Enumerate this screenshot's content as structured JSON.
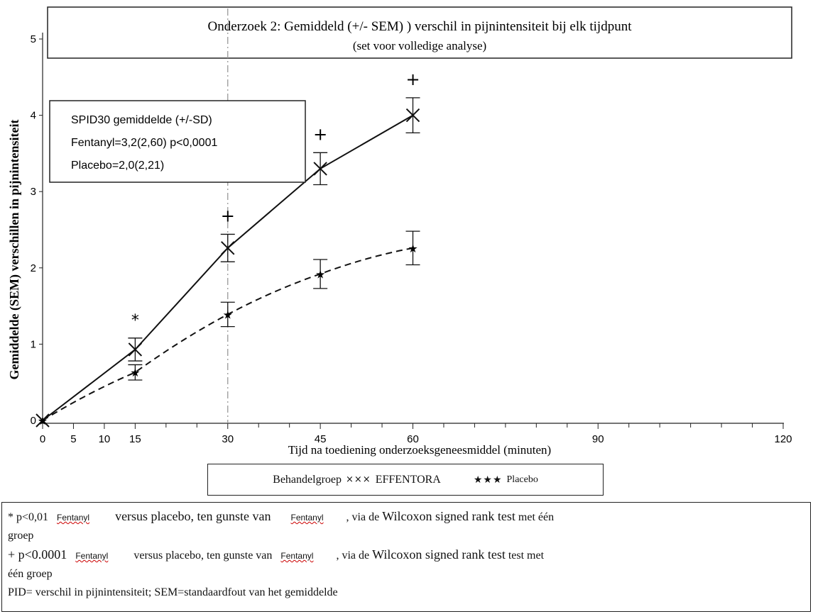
{
  "chart_data": {
    "type": "line",
    "title": "Onderzoek 2: Gemiddeld (+/- SEM) ) verschil in pijnintensiteit bij elk tijdpunt",
    "subtitle": "(set voor volledige analyse)",
    "xlabel": "Tijd na toediening onderzoeksgeneesmiddel (minuten)",
    "ylabel": "Gemiddelde (SEM) verschillen in pijnintensiteit",
    "xlim": [
      0,
      120
    ],
    "ylim": [
      0,
      5
    ],
    "x_ticks": [
      0,
      5,
      10,
      15,
      30,
      45,
      60,
      90,
      120
    ],
    "y_ticks": [
      0,
      1,
      2,
      3,
      4,
      5
    ],
    "reference_line_x": 30,
    "series": [
      {
        "name": "EFFENTORA",
        "marker": "x",
        "line_style": "solid",
        "color": "#111111",
        "points": [
          {
            "x": 0,
            "y": 0,
            "sem": 0
          },
          {
            "x": 15,
            "y": 0.93,
            "sem": 0.15
          },
          {
            "x": 30,
            "y": 2.26,
            "sem": 0.18
          },
          {
            "x": 45,
            "y": 3.3,
            "sem": 0.21
          },
          {
            "x": 60,
            "y": 4.0,
            "sem": 0.23
          }
        ]
      },
      {
        "name": "Placebo",
        "marker": "star",
        "line_style": "dashed",
        "color": "#111111",
        "points": [
          {
            "x": 0,
            "y": 0,
            "sem": 0
          },
          {
            "x": 15,
            "y": 0.63,
            "sem": 0.1
          },
          {
            "x": 30,
            "y": 1.39,
            "sem": 0.16
          },
          {
            "x": 45,
            "y": 1.92,
            "sem": 0.19
          },
          {
            "x": 60,
            "y": 2.26,
            "sem": 0.22
          }
        ]
      }
    ],
    "significance_marks": [
      {
        "x": 15,
        "symbol": "*"
      },
      {
        "x": 30,
        "symbol": "+"
      },
      {
        "x": 45,
        "symbol": "+"
      },
      {
        "x": 60,
        "symbol": "+"
      }
    ],
    "annotation_box": {
      "lines": [
        "SPID30 gemiddelde (+/-SD)",
        "Fentanyl=3,2(2,60) p<0,0001",
        "Placebo=2,0(2,21)"
      ]
    },
    "legend": {
      "placement": "bottom",
      "prefix": "Behandelgroep",
      "x_marker": "×××",
      "x_label": "EFFENTORA",
      "star_marker": "★★★",
      "star_label": "Placebo"
    }
  },
  "footnotes": {
    "line1": {
      "a": "* p<0,01",
      "b": "Fentanyl",
      "c": "versus placebo, ten gunste van",
      "d": "Fentanyl",
      "e": ", via de",
      "f": "Wilcoxon signed rank test",
      "g": "met één",
      "h": "groep"
    },
    "line2": {
      "a": "+ p<0.0001",
      "b": "Fentanyl",
      "c": "versus placebo, ten gunste van",
      "d": "Fentanyl",
      "e": ", via de",
      "f": "Wilcoxon signed rank test",
      "g": "test met",
      "h": "één groep"
    },
    "line3": "PID= verschil in pijnintensiteit; SEM=standaardfout van het gemiddelde"
  }
}
